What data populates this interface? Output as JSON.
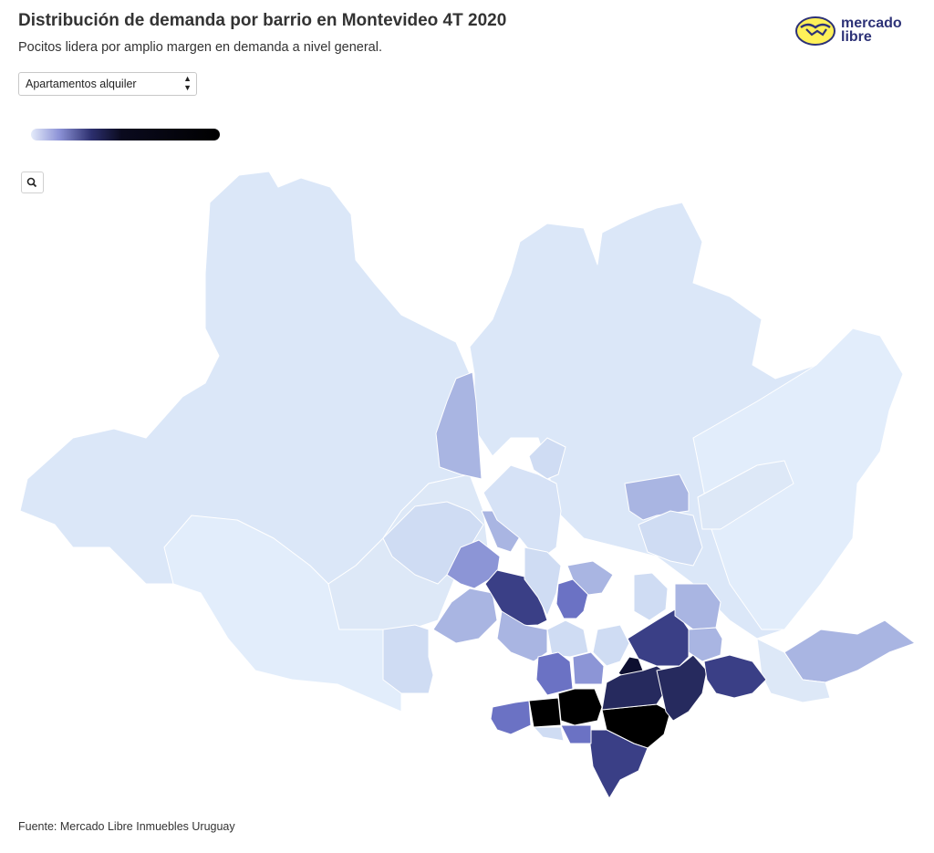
{
  "header": {
    "title": "Distribución de demanda por barrio en Montevideo 4T 2020",
    "subtitle": "Pocitos lidera por amplio margen en demanda a nivel general."
  },
  "logo": {
    "line1": "mercado",
    "line2": "libre"
  },
  "filter": {
    "selected": "Apartamentos alquiler"
  },
  "legend": {
    "gradient_colors": [
      "#e4ebfa",
      "#8c92d6",
      "#2c2f6e",
      "#0a0a1e",
      "#000000"
    ]
  },
  "zoom": {
    "icon": "search-icon"
  },
  "map": {
    "colors": {
      "base": "#dbe7f8",
      "very_light": "#e2edfb",
      "light": "#cfdcf3",
      "medium_light": "#a9b5e2",
      "medium": "#6b72c4",
      "medium_dark": "#3a3f86",
      "dark": "#262a5e",
      "darkest": "#000000"
    }
  },
  "footer": {
    "source": "Fuente: Mercado Libre Inmuebles Uruguay"
  }
}
